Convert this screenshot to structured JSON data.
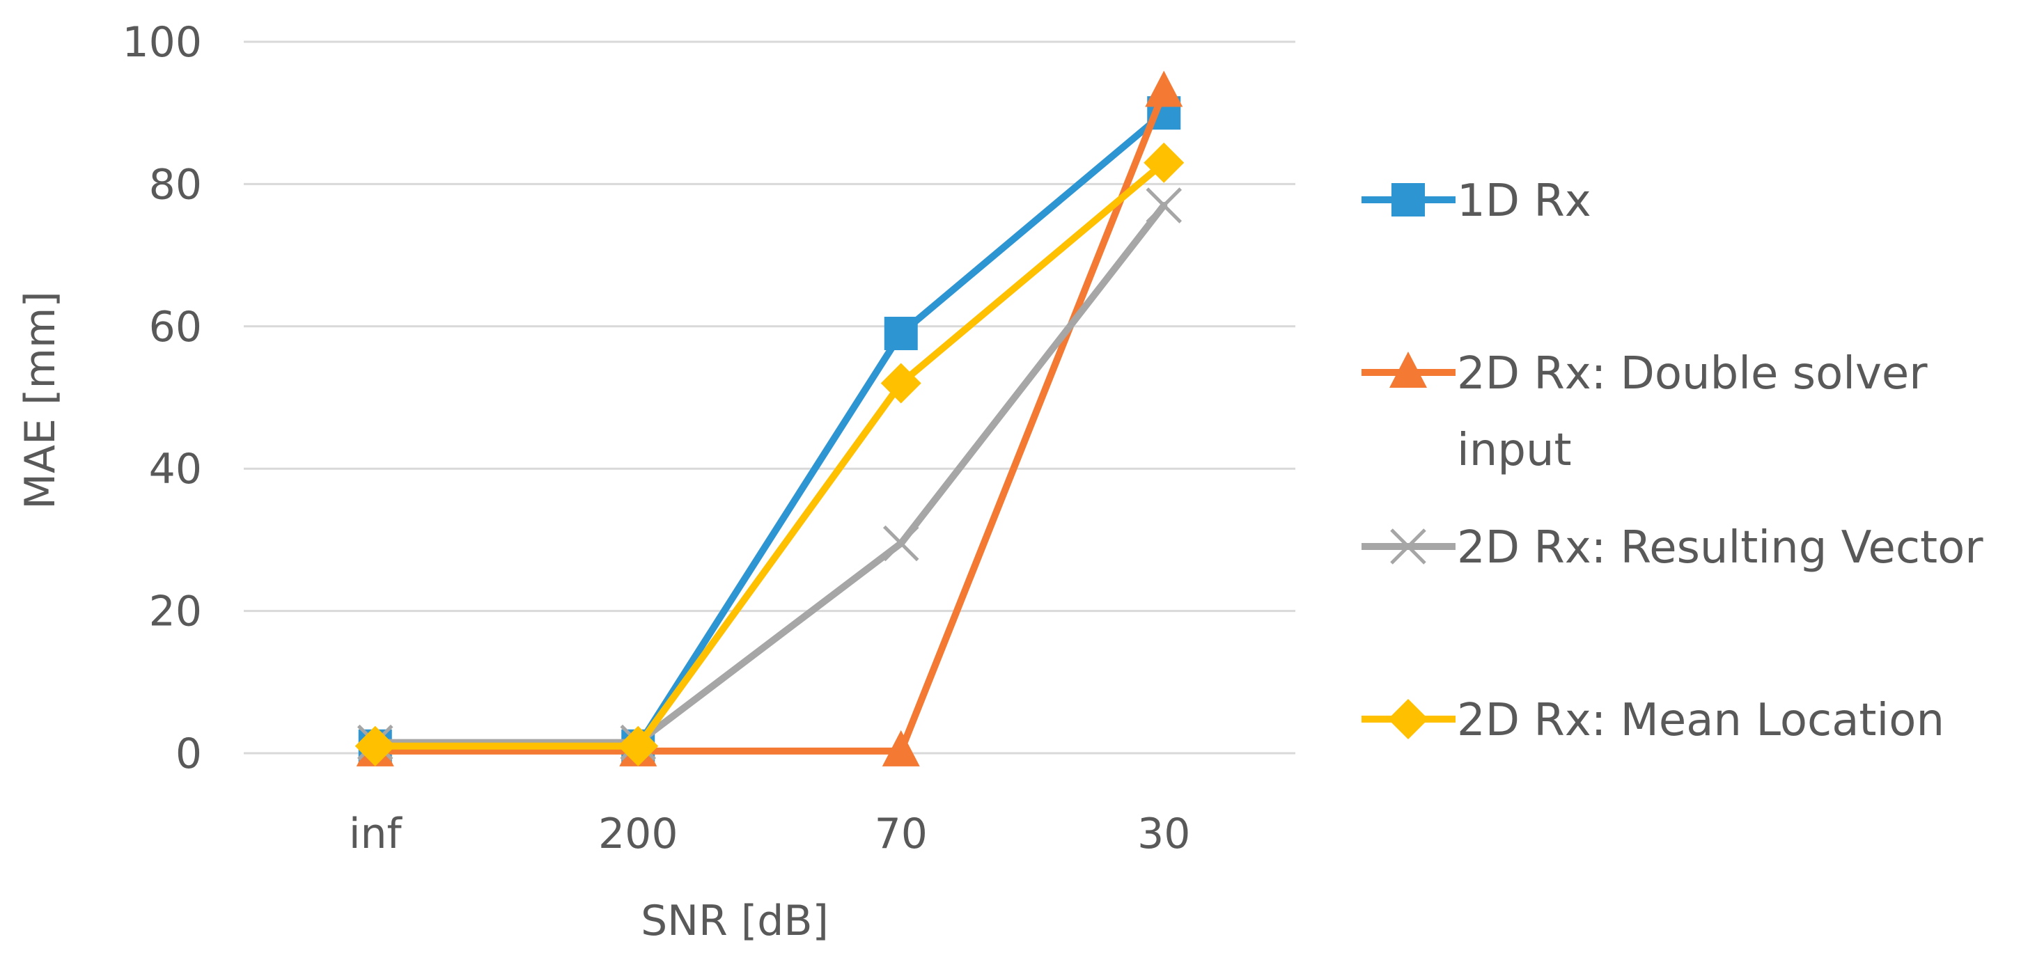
{
  "chart_data": {
    "type": "line",
    "categories": [
      "inf",
      "200",
      "70",
      "30"
    ],
    "xlabel": "SNR [dB]",
    "ylabel": "MAE [mm]",
    "ylim": [
      0,
      100
    ],
    "yticks": [
      "0",
      "20",
      "40",
      "60",
      "80",
      "100"
    ],
    "grid": true,
    "legend_position": "right",
    "series": [
      {
        "name": "1D Rx",
        "values": [
          1,
          1,
          59,
          90
        ],
        "color": "#2E95D3",
        "marker": "square",
        "legend_lines": [
          "1D Rx"
        ]
      },
      {
        "name": "2D Rx: Double solver input",
        "values": [
          0.3,
          0.3,
          0.3,
          93
        ],
        "color": "#F47A34",
        "marker": "triangle",
        "legend_lines": [
          "2D Rx: Double solver",
          "input"
        ]
      },
      {
        "name": "2D Rx: Resulting Vector",
        "values": [
          1.5,
          1.5,
          29.5,
          77
        ],
        "color": "#A6A6A6",
        "marker": "x",
        "legend_lines": [
          "2D Rx: Resulting Vector"
        ]
      },
      {
        "name": "2D Rx: Mean Location",
        "values": [
          1,
          1,
          52,
          83
        ],
        "color": "#FFC000",
        "marker": "diamond",
        "legend_lines": [
          "2D Rx: Mean Location"
        ]
      }
    ]
  }
}
